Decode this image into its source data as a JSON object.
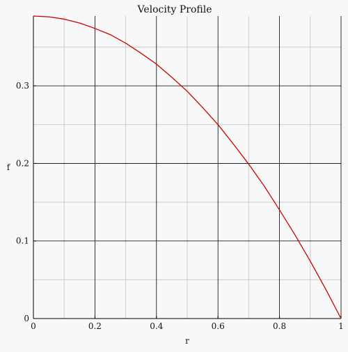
{
  "chart_data": {
    "type": "line",
    "title": "Velocity Profile",
    "xlabel": "r",
    "ylabel": "f",
    "xlim": [
      0,
      1
    ],
    "ylim": [
      0,
      0.39
    ],
    "xticks": [
      0,
      0.2,
      0.4,
      0.6,
      0.8,
      1
    ],
    "xtick_labels": [
      "0",
      "0.2",
      "0.4",
      "0.6",
      "0.8",
      "1"
    ],
    "yticks": [
      0,
      0.1,
      0.2,
      0.3
    ],
    "ytick_labels": [
      "0",
      "0.1",
      "0.2",
      "0.3"
    ],
    "grid": true,
    "series": [
      {
        "color": "#cc0000",
        "x": [
          0,
          0.05,
          0.1,
          0.15,
          0.2,
          0.25,
          0.3,
          0.35,
          0.4,
          0.45,
          0.5,
          0.55,
          0.6,
          0.65,
          0.7,
          0.75,
          0.8,
          0.85,
          0.9,
          0.95,
          1
        ],
        "y": [
          0.39,
          0.389,
          0.386,
          0.381,
          0.374,
          0.366,
          0.355,
          0.342,
          0.328,
          0.311,
          0.293,
          0.272,
          0.25,
          0.225,
          0.199,
          0.171,
          0.14,
          0.108,
          0.074,
          0.038,
          0
        ]
      }
    ],
    "colors": {
      "background": "#f8f8f8",
      "major_grid": "#000000",
      "minor_grid": "#cccccc",
      "line": "#cc0000"
    }
  }
}
